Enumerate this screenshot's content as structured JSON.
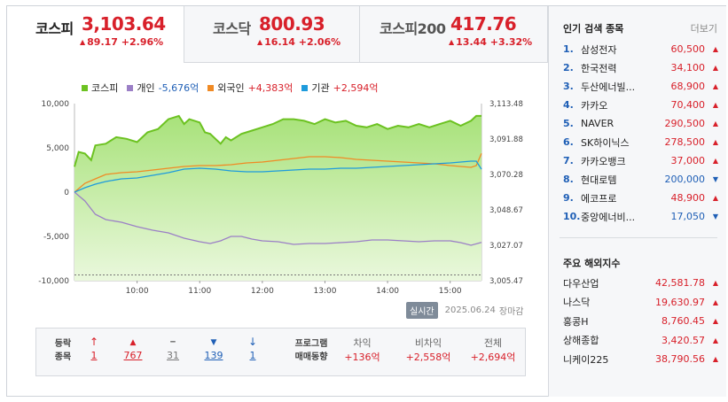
{
  "tabs": [
    {
      "name": "코스피",
      "value": "3,103.64",
      "change": "89.17 +2.96%"
    },
    {
      "name": "코스닥",
      "value": "800.93",
      "change": "16.14 +2.06%"
    },
    {
      "name": "코스피200",
      "value": "417.76",
      "change": "13.44 +3.32%"
    }
  ],
  "legend": [
    {
      "label": "코스피",
      "value": "",
      "color": "#6cc221"
    },
    {
      "label": "개인",
      "value": "-5,676억",
      "color": "#9b7fc6"
    },
    {
      "label": "외국인",
      "value": "+4,383억",
      "color": "#f08a24"
    },
    {
      "label": "기관",
      "value": "+2,594억",
      "color": "#1e9bdc"
    }
  ],
  "chart_data": {
    "type": "line",
    "x_ticks": [
      "10:00",
      "11:00",
      "12:00",
      "13:00",
      "14:00",
      "15:00"
    ],
    "y_left_ticks": [
      "10,000",
      "5,000",
      "0",
      "-5,000",
      "-10,000"
    ],
    "y_right_ticks": [
      "3,113.48",
      "3,091.88",
      "3,070.28",
      "3,048.67",
      "3,027.07",
      "3,005.47"
    ],
    "ylim_left": [
      -10000,
      10000
    ],
    "ylim_right": [
      3005.47,
      3113.48
    ],
    "x_range": [
      "09:00",
      "15:30"
    ],
    "series": [
      {
        "name": "코스피",
        "type": "area",
        "axis": "right",
        "color": "#6cc221",
        "x": [
          "09:00",
          "09:04",
          "09:10",
          "09:16",
          "09:20",
          "09:30",
          "09:40",
          "09:50",
          "10:00",
          "10:10",
          "10:20",
          "10:30",
          "10:40",
          "10:45",
          "10:50",
          "11:00",
          "11:05",
          "11:10",
          "11:20",
          "11:25",
          "11:30",
          "11:40",
          "11:50",
          "12:00",
          "12:10",
          "12:20",
          "12:30",
          "12:40",
          "12:50",
          "13:00",
          "13:10",
          "13:20",
          "13:30",
          "13:40",
          "13:50",
          "14:00",
          "14:10",
          "14:20",
          "14:30",
          "14:40",
          "14:50",
          "15:00",
          "15:10",
          "15:20",
          "15:25",
          "15:30"
        ],
        "y": [
          3075,
          3084,
          3083,
          3079,
          3088,
          3089,
          3093,
          3092,
          3090,
          3096,
          3098,
          3104,
          3106,
          3101,
          3104,
          3102,
          3096,
          3095,
          3089,
          3093,
          3091,
          3095,
          3097,
          3099,
          3101,
          3104,
          3104,
          3103,
          3101,
          3104,
          3102,
          3103,
          3100,
          3099,
          3101,
          3098,
          3100,
          3099,
          3101,
          3099,
          3101,
          3103,
          3100,
          3103,
          3106,
          3106
        ]
      },
      {
        "name": "개인",
        "type": "line",
        "axis": "left",
        "color": "#9b7fc6",
        "x": [
          "09:00",
          "09:10",
          "09:20",
          "09:30",
          "09:45",
          "10:00",
          "10:15",
          "10:30",
          "10:45",
          "11:00",
          "11:10",
          "11:20",
          "11:30",
          "11:40",
          "11:50",
          "12:00",
          "12:15",
          "12:30",
          "12:45",
          "13:00",
          "13:15",
          "13:30",
          "13:45",
          "14:00",
          "14:15",
          "14:30",
          "14:45",
          "15:00",
          "15:10",
          "15:20",
          "15:30"
        ],
        "y": [
          0,
          -1000,
          -2500,
          -3100,
          -3400,
          -3900,
          -4300,
          -4600,
          -5200,
          -5600,
          -5800,
          -5500,
          -5000,
          -5000,
          -5300,
          -5500,
          -5600,
          -5900,
          -5800,
          -5800,
          -5700,
          -5600,
          -5400,
          -5400,
          -5500,
          -5600,
          -5500,
          -5500,
          -5700,
          -6000,
          -5676
        ]
      },
      {
        "name": "외국인",
        "type": "line",
        "axis": "left",
        "color": "#f08a24",
        "x": [
          "09:00",
          "09:10",
          "09:20",
          "09:30",
          "09:45",
          "10:00",
          "10:15",
          "10:30",
          "10:45",
          "11:00",
          "11:15",
          "11:30",
          "11:45",
          "12:00",
          "12:15",
          "12:30",
          "12:45",
          "13:00",
          "13:15",
          "13:30",
          "13:45",
          "14:00",
          "14:15",
          "14:30",
          "14:45",
          "15:00",
          "15:10",
          "15:20",
          "15:25",
          "15:30"
        ],
        "y": [
          0,
          1000,
          1500,
          2000,
          2200,
          2300,
          2500,
          2700,
          2900,
          3000,
          3000,
          3100,
          3300,
          3400,
          3600,
          3800,
          4000,
          4000,
          3900,
          3700,
          3600,
          3500,
          3400,
          3300,
          3200,
          3000,
          2900,
          2800,
          3000,
          4383
        ]
      },
      {
        "name": "기관",
        "type": "line",
        "axis": "left",
        "color": "#1e9bdc",
        "x": [
          "09:00",
          "09:10",
          "09:20",
          "09:30",
          "09:45",
          "10:00",
          "10:15",
          "10:30",
          "10:45",
          "11:00",
          "11:15",
          "11:30",
          "11:45",
          "12:00",
          "12:15",
          "12:30",
          "12:45",
          "13:00",
          "13:15",
          "13:30",
          "13:45",
          "14:00",
          "14:15",
          "14:30",
          "14:45",
          "15:00",
          "15:10",
          "15:20",
          "15:25",
          "15:30"
        ],
        "y": [
          0,
          500,
          900,
          1200,
          1500,
          1600,
          1900,
          2200,
          2600,
          2700,
          2600,
          2400,
          2300,
          2300,
          2400,
          2500,
          2600,
          2600,
          2700,
          2700,
          2800,
          2900,
          3000,
          3100,
          3200,
          3300,
          3400,
          3500,
          3500,
          2594
        ]
      }
    ]
  },
  "timebar": {
    "badge": "실시간",
    "date": "2025.06.24",
    "status": "장마감"
  },
  "updown": {
    "header": [
      "등락",
      "종목"
    ],
    "items": [
      {
        "symbol": "↑",
        "count": "1",
        "color": "red"
      },
      {
        "symbol": "▲",
        "count": "767",
        "color": "red"
      },
      {
        "symbol": "━",
        "count": "31",
        "color": "gray"
      },
      {
        "symbol": "▼",
        "count": "139",
        "color": "blue"
      },
      {
        "symbol": "↓",
        "count": "1",
        "color": "blue"
      }
    ]
  },
  "program": {
    "header": [
      "프로그램",
      "매매동향"
    ],
    "items": [
      {
        "label": "차익",
        "value": "+136억"
      },
      {
        "label": "비차익",
        "value": "+2,558억"
      },
      {
        "label": "전체",
        "value": "+2,694억"
      }
    ]
  },
  "popular": {
    "title": "인기 검색 종목",
    "more": "더보기",
    "items": [
      {
        "rank": "1.",
        "name": "삼성전자",
        "price": "60,500",
        "dir": "▲",
        "color": "red"
      },
      {
        "rank": "2.",
        "name": "한국전력",
        "price": "34,100",
        "dir": "▲",
        "color": "red"
      },
      {
        "rank": "3.",
        "name": "두산에너빌...",
        "price": "68,900",
        "dir": "▲",
        "color": "red"
      },
      {
        "rank": "4.",
        "name": "카카오",
        "price": "70,400",
        "dir": "▲",
        "color": "red"
      },
      {
        "rank": "5.",
        "name": "NAVER",
        "price": "290,500",
        "dir": "▲",
        "color": "red"
      },
      {
        "rank": "6.",
        "name": "SK하이닉스",
        "price": "278,500",
        "dir": "▲",
        "color": "red"
      },
      {
        "rank": "7.",
        "name": "카카오뱅크",
        "price": "37,000",
        "dir": "▲",
        "color": "red"
      },
      {
        "rank": "8.",
        "name": "현대로템",
        "price": "200,000",
        "dir": "▼",
        "color": "blue"
      },
      {
        "rank": "9.",
        "name": "에코프로",
        "price": "48,900",
        "dir": "▲",
        "color": "red"
      },
      {
        "rank": "10.",
        "name": "중앙에너비...",
        "price": "17,050",
        "dir": "▼",
        "color": "blue"
      }
    ]
  },
  "world": {
    "title": "주요 해외지수",
    "items": [
      {
        "name": "다우산업",
        "price": "42,581.78",
        "dir": "▲"
      },
      {
        "name": "나스닥",
        "price": "19,630.97",
        "dir": "▲"
      },
      {
        "name": "홍콩H",
        "price": "8,760.45",
        "dir": "▲"
      },
      {
        "name": "상해종합",
        "price": "3,420.57",
        "dir": "▲"
      },
      {
        "name": "니케이225",
        "price": "38,790.56",
        "dir": "▲"
      }
    ]
  }
}
